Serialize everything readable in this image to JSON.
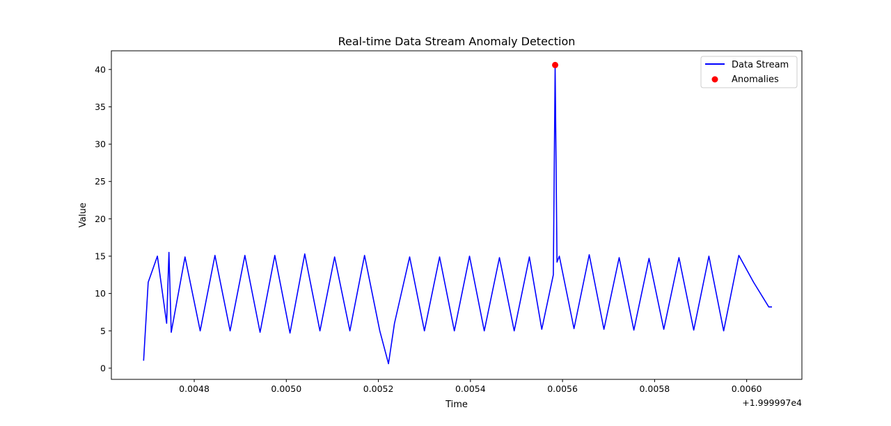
{
  "chart_data": {
    "type": "line",
    "title": "Real-time Data Stream Anomaly Detection",
    "xlabel": "Time",
    "ylabel": "Value",
    "x_offset_label": "+1.999997e4",
    "xlim": [
      0.00462,
      0.00612
    ],
    "ylim": [
      -1.5,
      42.5
    ],
    "x_ticks": [
      0.0048,
      0.005,
      0.0052,
      0.0054,
      0.0056,
      0.0058,
      0.006
    ],
    "x_tick_labels": [
      "0.0048",
      "0.0050",
      "0.0052",
      "0.0054",
      "0.0056",
      "0.0058",
      "0.0060"
    ],
    "y_ticks": [
      0,
      5,
      10,
      15,
      20,
      25,
      30,
      35,
      40
    ],
    "y_tick_labels": [
      "0",
      "5",
      "10",
      "15",
      "20",
      "25",
      "30",
      "35",
      "40"
    ],
    "grid": false,
    "legend_placement": "top-right",
    "series": [
      {
        "name": "Data Stream",
        "kind": "line",
        "color": "#0000ff",
        "x": [
          0.00469,
          0.0047,
          0.00472,
          0.00474,
          0.004745,
          0.00475,
          0.00478,
          0.004813,
          0.004845,
          0.004878,
          0.00491,
          0.004943,
          0.004975,
          0.005008,
          0.00504,
          0.005073,
          0.005105,
          0.005138,
          0.00517,
          0.005203,
          0.005222,
          0.005235,
          0.005268,
          0.0053,
          0.005333,
          0.005365,
          0.005398,
          0.00543,
          0.005463,
          0.005495,
          0.005528,
          0.005555,
          0.00558,
          0.005584,
          0.005588,
          0.005593,
          0.005625,
          0.005658,
          0.00569,
          0.005723,
          0.005755,
          0.005788,
          0.00582,
          0.005853,
          0.005885,
          0.005918,
          0.00595,
          0.005983,
          0.006015,
          0.006048,
          0.006055
        ],
        "y": [
          1.0,
          11.5,
          15.0,
          6.0,
          15.5,
          4.8,
          14.9,
          5.0,
          15.1,
          5.0,
          15.1,
          4.8,
          15.1,
          4.7,
          15.3,
          5.0,
          14.9,
          5.0,
          15.1,
          5.0,
          0.6,
          6.0,
          14.9,
          5.0,
          14.9,
          5.0,
          15.0,
          5.0,
          14.8,
          5.0,
          14.9,
          5.2,
          12.5,
          40.5,
          14.2,
          15.0,
          5.3,
          15.2,
          5.2,
          14.8,
          5.1,
          14.7,
          5.2,
          14.8,
          5.1,
          15.0,
          5.0,
          15.1,
          11.5,
          8.2,
          8.2
        ]
      },
      {
        "name": "Anomalies",
        "kind": "scatter",
        "color": "#ff0000",
        "x": [
          0.005584
        ],
        "y": [
          40.6
        ]
      }
    ]
  }
}
